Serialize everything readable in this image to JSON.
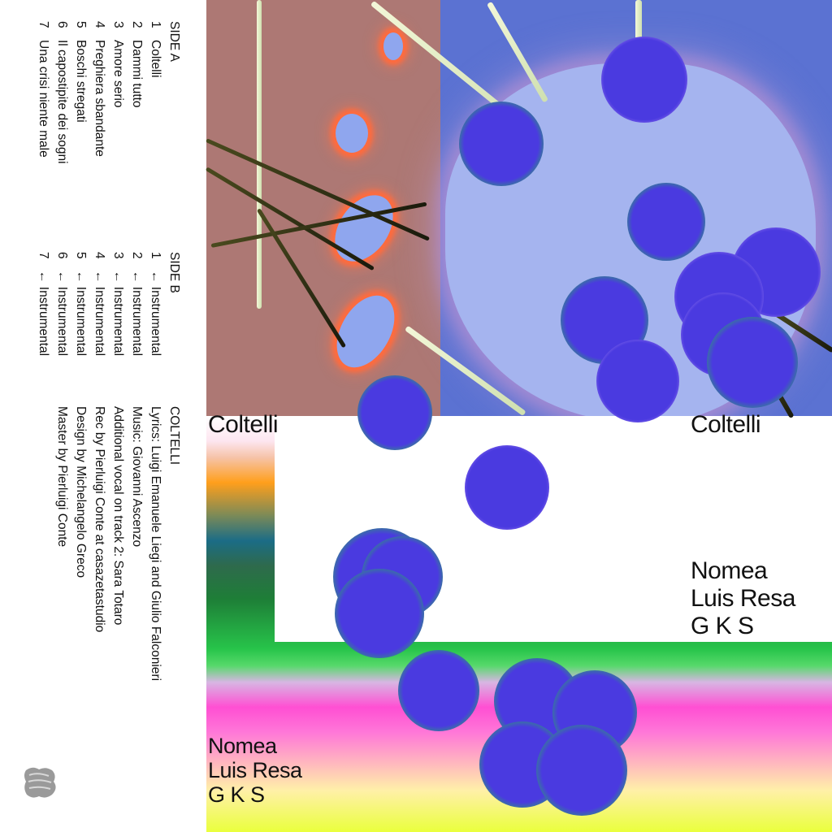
{
  "side_a": {
    "heading": "SIDE A",
    "tracks": [
      {
        "num": "1",
        "title": "Coltelli"
      },
      {
        "num": "2",
        "title": "Dammi tutto"
      },
      {
        "num": "3",
        "title": "Amore serio"
      },
      {
        "num": "4",
        "title": "Preghiera sbandante"
      },
      {
        "num": "5",
        "title": "Boschi stregati"
      },
      {
        "num": "6",
        "title": "Il capostipite dei sogni"
      },
      {
        "num": "7",
        "title": "Una crisi niente male"
      }
    ]
  },
  "side_b": {
    "heading": "SIDE B",
    "tracks": [
      {
        "num": "1",
        "title": "← Instrumental"
      },
      {
        "num": "2",
        "title": "← Instrumental"
      },
      {
        "num": "3",
        "title": "← Instrumental"
      },
      {
        "num": "4",
        "title": "← Instrumental"
      },
      {
        "num": "5",
        "title": "← Instrumental"
      },
      {
        "num": "6",
        "title": "← Instrumental"
      },
      {
        "num": "7",
        "title": "← Instrumental"
      }
    ]
  },
  "credits": {
    "heading": "COLTELLI",
    "lines": [
      "Lyrics: Luigi Emanuele Liegi and Giulio Falconieri",
      "Music: Giovanni Ascenzo",
      "Additional vocal on track 2: Sara Totaro",
      "Rec by Pierluigi Conte at casazetastudio",
      "Design by Michelangelo Greco",
      "Master by Pierluigi Conte"
    ]
  },
  "cover": {
    "title_left": "Coltelli",
    "title_right": "Coltelli",
    "artists_right": [
      "Nomea",
      "Luis Resa",
      "G K S"
    ],
    "artists_left": [
      "Nomea",
      "Luis Resa",
      "G K S"
    ]
  },
  "colors": {
    "brown_panel": "#ad7874",
    "blue_panel": "#5b72d2",
    "blob": "#a5b4ef",
    "circle": "#4a3ae0",
    "green_band": "#27c44a",
    "pink_band": "#ff4fd3",
    "yellow_band": "#eaff3c"
  },
  "icons": {
    "logo": "label-logo-icon"
  }
}
